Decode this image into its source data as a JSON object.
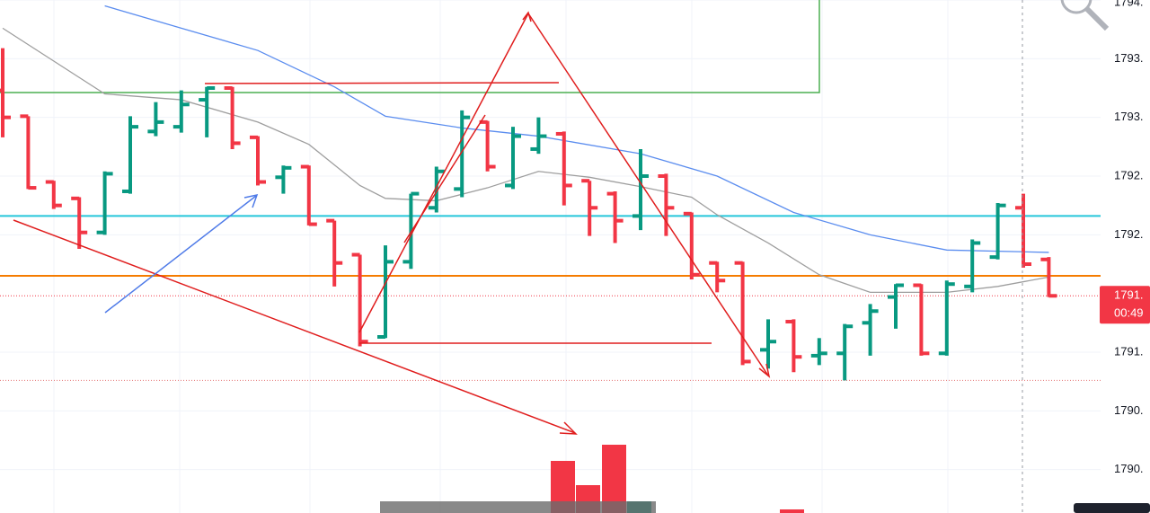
{
  "chart_data": {
    "type": "ohlc",
    "up_color": "#089981",
    "down_color": "#f23645",
    "ylim": [
      1789.63,
      1794.0
    ],
    "yticks": [
      {
        "value": 1794.0,
        "label": "1794."
      },
      {
        "value": 1793.5,
        "label": "1793."
      },
      {
        "value": 1793.0,
        "label": "1793."
      },
      {
        "value": 1792.5,
        "label": "1792."
      },
      {
        "value": 1792.0,
        "label": "1792."
      },
      {
        "value": 1791.0,
        "label": "1791."
      },
      {
        "value": 1790.5,
        "label": "1790."
      },
      {
        "value": 1790.0,
        "label": "1790."
      }
    ],
    "grid": true,
    "ohlc": {
      "open": [
        1793.23,
        1793.01,
        1792.45,
        1792.31,
        1792.02,
        1792.37,
        1792.88,
        1792.92,
        1793.15,
        1793.25,
        1792.83,
        1792.49,
        1792.58,
        1792.12,
        1791.83,
        1791.13,
        1791.77,
        1792.23,
        1792.39,
        1792.96,
        1792.42,
        1792.73,
        1792.86,
        1792.46,
        1792.35,
        1792.16,
        1792.5,
        1792.18,
        1791.76,
        1791.76,
        1791.02,
        1791.26,
        1790.97,
        1790.99,
        1791.25,
        1791.47,
        1791.57,
        1790.99,
        1791.56,
        1791.81,
        1792.23,
        1791.79
      ],
      "high": [
        1793.59,
        1793.01,
        1792.46,
        1792.32,
        1792.54,
        1793.01,
        1793.13,
        1793.23,
        1793.26,
        1793.26,
        1792.84,
        1792.59,
        1792.59,
        1792.12,
        1791.83,
        1791.91,
        1792.35,
        1792.58,
        1793.06,
        1792.97,
        1792.92,
        1793.0,
        1792.88,
        1792.46,
        1792.37,
        1792.73,
        1792.52,
        1792.19,
        1791.77,
        1791.77,
        1791.28,
        1791.28,
        1791.12,
        1791.24,
        1791.41,
        1791.58,
        1791.58,
        1791.61,
        1791.96,
        1792.27,
        1792.35,
        1791.81
      ],
      "low": [
        1792.83,
        1792.39,
        1792.22,
        1791.88,
        1792.0,
        1792.35,
        1792.84,
        1792.87,
        1792.83,
        1792.73,
        1792.42,
        1792.35,
        1792.08,
        1791.56,
        1791.05,
        1791.12,
        1791.71,
        1792.19,
        1792.32,
        1792.54,
        1792.39,
        1792.69,
        1792.25,
        1791.99,
        1791.93,
        1792.04,
        1791.99,
        1791.62,
        1791.51,
        1790.89,
        1790.86,
        1790.83,
        1790.89,
        1790.76,
        1790.97,
        1791.2,
        1790.97,
        1790.97,
        1791.51,
        1791.79,
        1791.72,
        1791.47
      ],
      "close": [
        1793.0,
        1792.4,
        1792.25,
        1792.02,
        1792.52,
        1792.92,
        1792.96,
        1793.11,
        1793.25,
        1792.78,
        1792.45,
        1792.57,
        1792.09,
        1791.76,
        1791.09,
        1791.77,
        1792.35,
        1792.54,
        1793.0,
        1792.58,
        1792.84,
        1792.84,
        1792.42,
        1792.23,
        1792.12,
        1792.5,
        1792.23,
        1791.66,
        1791.61,
        1790.92,
        1791.09,
        1790.96,
        1790.99,
        1791.22,
        1791.35,
        1791.57,
        1790.99,
        1791.58,
        1791.93,
        1792.25,
        1791.75,
        1791.48
      ]
    },
    "lines": [
      {
        "color": "#5b8def",
        "x": [
          4,
          7,
          10,
          13,
          15,
          18,
          21,
          25,
          28,
          31,
          34,
          37,
          41
        ],
        "values": [
          1793.95,
          1793.76,
          1793.57,
          1793.26,
          1793.01,
          1792.91,
          1792.84,
          1792.69,
          1792.5,
          1792.19,
          1792.0,
          1791.87,
          1791.85
        ]
      },
      {
        "color": "#9e9e9e",
        "x": [
          0,
          3,
          4,
          7,
          10,
          12,
          14,
          15,
          17,
          19,
          21,
          23,
          25,
          27,
          28,
          30,
          32,
          34,
          37,
          39,
          41
        ],
        "values": [
          1793.76,
          1793.34,
          1793.2,
          1793.15,
          1792.96,
          1792.77,
          1792.42,
          1792.31,
          1792.29,
          1792.4,
          1792.54,
          1792.49,
          1792.41,
          1792.32,
          1792.17,
          1791.93,
          1791.66,
          1791.51,
          1791.51,
          1791.56,
          1791.64
        ]
      }
    ],
    "hlines": [
      {
        "value": 1792.16,
        "color": "#26c6da",
        "style": "solid"
      },
      {
        "value": 1791.65,
        "color": "#f57c00",
        "style": "solid"
      },
      {
        "value": 1791.48,
        "color": "#f23645",
        "style": "dotted"
      },
      {
        "value": 1790.76,
        "color": "#e57373",
        "style": "dotted"
      }
    ],
    "last_price": {
      "value": 1791.48,
      "label": "1791."
    },
    "countdown": "00:49"
  }
}
